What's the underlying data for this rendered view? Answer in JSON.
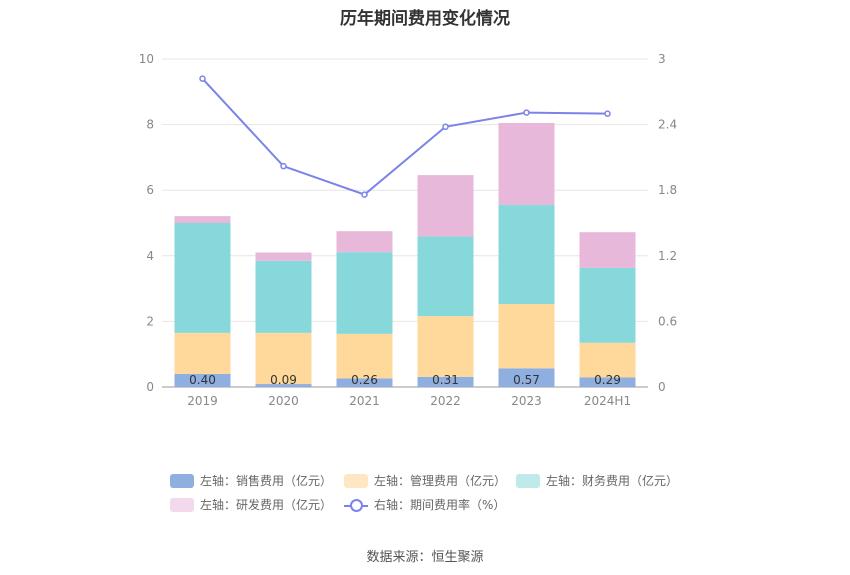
{
  "chart_data": {
    "type": "bar",
    "title": "历年期间费用变化情况",
    "categories": [
      "2019",
      "2020",
      "2021",
      "2022",
      "2023",
      "2024H1"
    ],
    "stacked": true,
    "series": [
      {
        "name": "左轴：销售费用（亿元）",
        "axis": "left",
        "color": "#8eafe0",
        "values": [
          0.4,
          0.09,
          0.26,
          0.31,
          0.57,
          0.29
        ]
      },
      {
        "name": "左轴：管理费用（亿元）",
        "axis": "left",
        "color": "#ffd89b",
        "values": [
          1.25,
          1.56,
          1.36,
          1.85,
          1.96,
          1.06
        ]
      },
      {
        "name": "左轴：财务费用（亿元）",
        "axis": "left",
        "color": "#86d8db",
        "values": [
          3.35,
          2.2,
          2.49,
          2.43,
          3.02,
          2.28
        ]
      },
      {
        "name": "左轴：研发费用（亿元）",
        "axis": "left",
        "color": "#e8b8da",
        "values": [
          0.21,
          0.25,
          0.64,
          1.87,
          2.5,
          1.09
        ]
      }
    ],
    "line_series": {
      "name": "右轴：期间费用率（%）",
      "axis": "right",
      "color": "#7b83eb",
      "values": [
        2.82,
        2.02,
        1.76,
        2.38,
        2.51,
        2.5
      ]
    },
    "data_labels": [
      "0.40",
      "0.09",
      "0.26",
      "0.31",
      "0.57",
      "0.29"
    ],
    "left_ticks": [
      "0",
      "2",
      "4",
      "6",
      "8",
      "10"
    ],
    "right_ticks": [
      "0",
      "0.6",
      "1.2",
      "1.8",
      "2.4",
      "3"
    ],
    "ylim_left": [
      0,
      10
    ],
    "ylim_right": [
      0,
      3
    ],
    "grid": true,
    "legend_position": "bottom"
  },
  "legend_swatch_colors": {
    "sales": "#8eafe0",
    "admin": "#ffe7c4",
    "finance": "#bfeaea",
    "rnd": "#f3d9ec",
    "rate": "#7b83eb"
  },
  "source": "数据来源：恒生聚源"
}
